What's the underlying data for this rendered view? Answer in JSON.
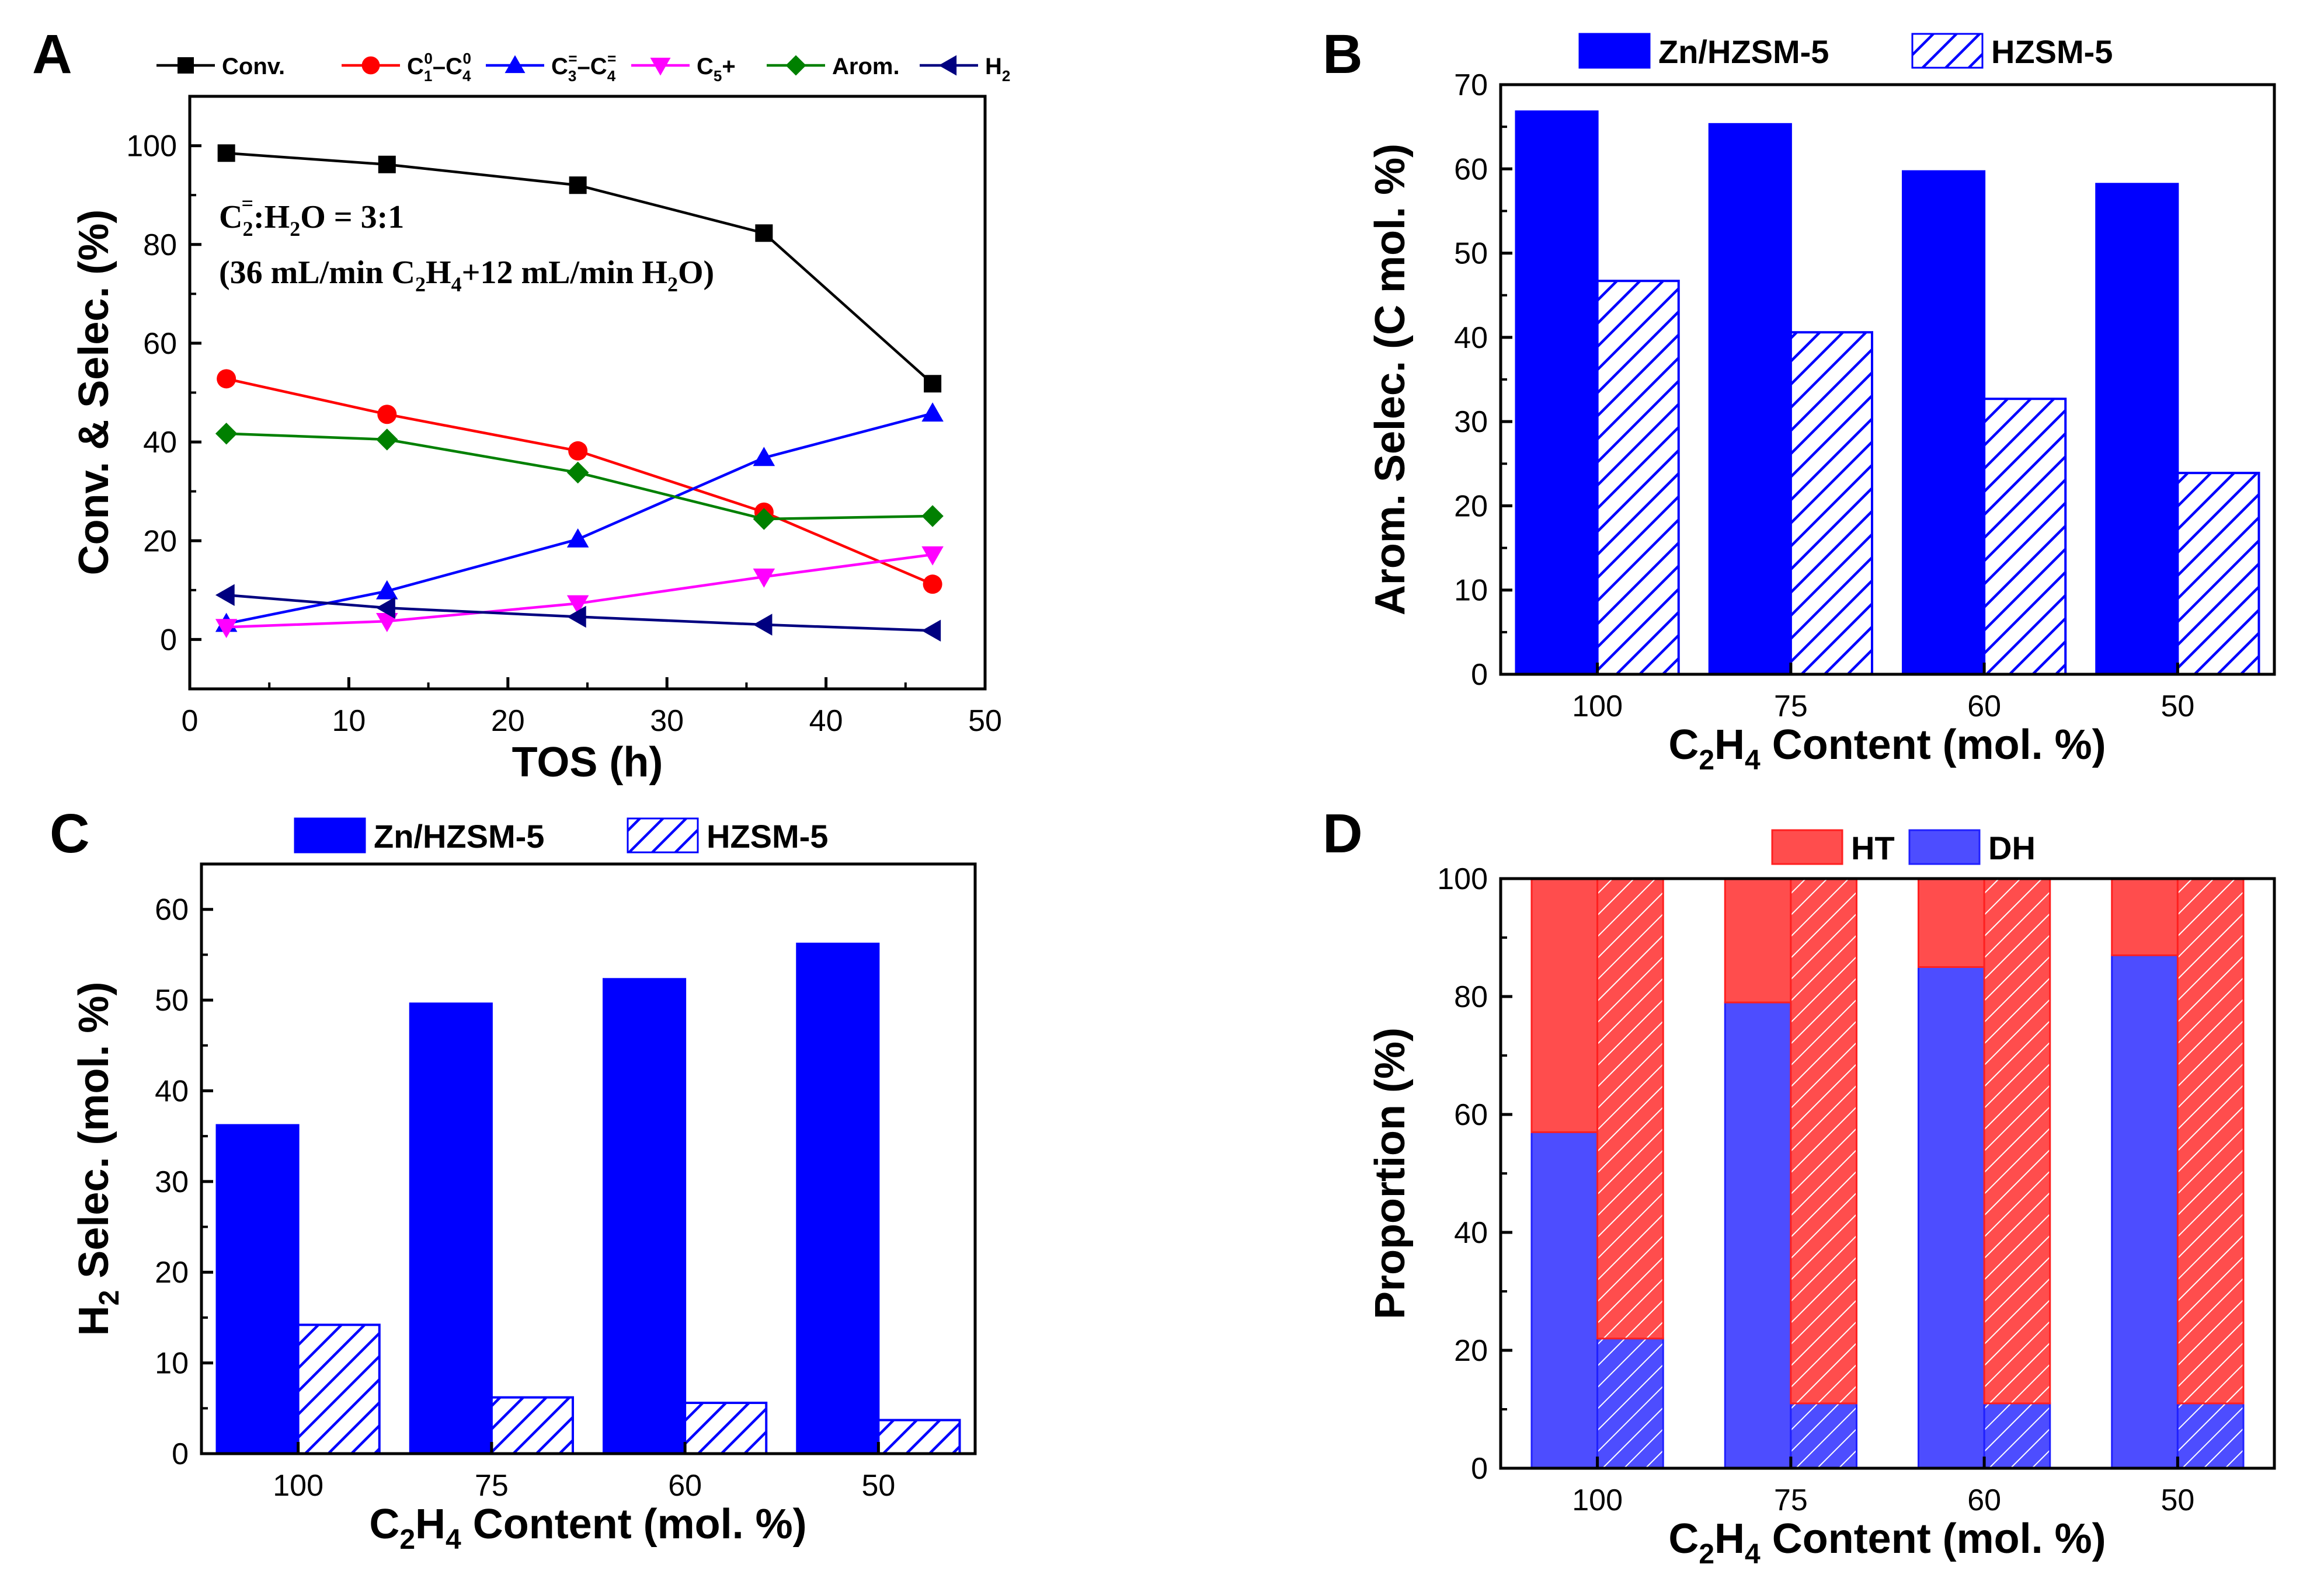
{
  "colors": {
    "conv": "#000000",
    "c1c4": "#ff0000",
    "c3c4": "#0000ff",
    "c5": "#ff00ff",
    "arom": "#008000",
    "h2": "#000080",
    "zn": "#0000ff",
    "hzsm": "#0000ff",
    "ht": "#ff4d4d",
    "dh": "#4d4dff"
  },
  "chart_data": [
    {
      "panel": "A",
      "type": "line",
      "xlabel": "TOS (h)",
      "ylabel": "Conv. & Selec. (%)",
      "xlim": [
        0,
        50
      ],
      "ylim": [
        -10,
        110
      ],
      "xticks": [
        "0",
        "10",
        "20",
        "30",
        "40",
        "50"
      ],
      "yticks": [
        "0",
        "20",
        "40",
        "60",
        "80",
        "100"
      ],
      "annotation": {
        "line1_a": "C",
        "line1_sub": "2",
        "line1_sup": "=",
        "line1_b": ":H",
        "line1_sub2": "2",
        "line1_c": "O = 3:1",
        "line2_a": "(36 mL/min C",
        "line2_sub": "2",
        "line2_b": "H",
        "line2_sub2": "4",
        "line2_c": "+12 mL/min H",
        "line2_sub3": "2",
        "line2_d": "O)"
      },
      "x": [
        2.3,
        12.4,
        24.4,
        36.1,
        46.7
      ],
      "series": [
        {
          "name": "Conv.",
          "marker": "square",
          "color": "#000000",
          "values": [
            98.5,
            96.2,
            92,
            82.3,
            51.8
          ]
        },
        {
          "name": "C1-C4",
          "label_main": "C",
          "sub1": "1",
          "sup1": "0",
          "dash": "–C",
          "sub2": "4",
          "sup2": "0",
          "marker": "circle",
          "color": "#ff0000",
          "values": [
            52.8,
            45.6,
            38.2,
            25.8,
            11.2
          ]
        },
        {
          "name": "C3=-C4=",
          "label_main": "C",
          "sub1": "3",
          "sup1": "=",
          "dash": "–C",
          "sub2": "4",
          "sup2": "=",
          "marker": "triangle-up",
          "color": "#0000ff",
          "values": [
            3.2,
            9.8,
            20.3,
            36.8,
            45.8
          ]
        },
        {
          "name": "C5+",
          "label_main": "C",
          "sub1": "5",
          "suffix": "+",
          "marker": "triangle-down",
          "color": "#ff00ff",
          "values": [
            2.5,
            3.7,
            7.3,
            12.7,
            17.2
          ]
        },
        {
          "name": "Arom.",
          "marker": "diamond",
          "color": "#008000",
          "values": [
            41.7,
            40.5,
            33.8,
            24.4,
            25.0
          ]
        },
        {
          "name": "H2",
          "label_main": "H",
          "sub1": "2",
          "marker": "triangle-left",
          "color": "#000080",
          "values": [
            9.0,
            6.4,
            4.6,
            3.0,
            1.8
          ]
        }
      ]
    },
    {
      "panel": "B",
      "type": "bar",
      "xlabel_a": "C",
      "xlabel_sub1": "2",
      "xlabel_b": "H",
      "xlabel_sub2": "4",
      "xlabel_c": " Content (mol. %)",
      "ylabel": "Arom. Selec. (C mol. %)",
      "ylim": [
        0,
        70
      ],
      "yticks": [
        "0",
        "10",
        "20",
        "30",
        "40",
        "50",
        "60",
        "70"
      ],
      "categories": [
        "100",
        "75",
        "60",
        "50"
      ],
      "series": [
        {
          "name": "Zn/HZSM-5",
          "fill": "solid",
          "values": [
            66.8,
            65.3,
            59.7,
            58.2
          ]
        },
        {
          "name": "HZSM-5",
          "fill": "hatch",
          "values": [
            46.7,
            40.6,
            32.7,
            23.9
          ]
        }
      ]
    },
    {
      "panel": "C",
      "type": "bar",
      "xlabel_a": "C",
      "xlabel_sub1": "2",
      "xlabel_b": "H",
      "xlabel_sub2": "4",
      "xlabel_c": " Content (mol. %)",
      "ylabel_a": "H",
      "ylabel_sub": "2",
      "ylabel_b": " Selec. (mol. %)",
      "ylim": [
        0,
        65
      ],
      "yticks": [
        "0",
        "10",
        "20",
        "30",
        "40",
        "50",
        "60"
      ],
      "categories": [
        "100",
        "75",
        "60",
        "50"
      ],
      "series": [
        {
          "name": "Zn/HZSM-5",
          "fill": "solid",
          "values": [
            36.2,
            49.6,
            52.3,
            56.2
          ]
        },
        {
          "name": "HZSM-5",
          "fill": "hatch",
          "values": [
            14.2,
            6.2,
            5.6,
            3.7
          ]
        }
      ]
    },
    {
      "panel": "D",
      "type": "bar",
      "stacked": true,
      "xlabel_a": "C",
      "xlabel_sub1": "2",
      "xlabel_b": "H",
      "xlabel_sub2": "4",
      "xlabel_c": " Content (mol. %)",
      "ylabel": "Proportion (%)",
      "ylim": [
        0,
        100
      ],
      "yticks": [
        "0",
        "20",
        "40",
        "60",
        "80",
        "100"
      ],
      "categories": [
        "100",
        "75",
        "60",
        "50"
      ],
      "legend": [
        "HT",
        "DH"
      ],
      "groups": [
        {
          "name": "Zn/HZSM-5",
          "fill": "solid",
          "dh": [
            57,
            79,
            85,
            87
          ],
          "ht": [
            43,
            21,
            15,
            13
          ]
        },
        {
          "name": "HZSM-5",
          "fill": "hatch",
          "dh": [
            22,
            11,
            11,
            11
          ],
          "ht": [
            78,
            89,
            89,
            89
          ]
        }
      ]
    }
  ],
  "panel_labels": [
    "A",
    "B",
    "C",
    "D"
  ]
}
